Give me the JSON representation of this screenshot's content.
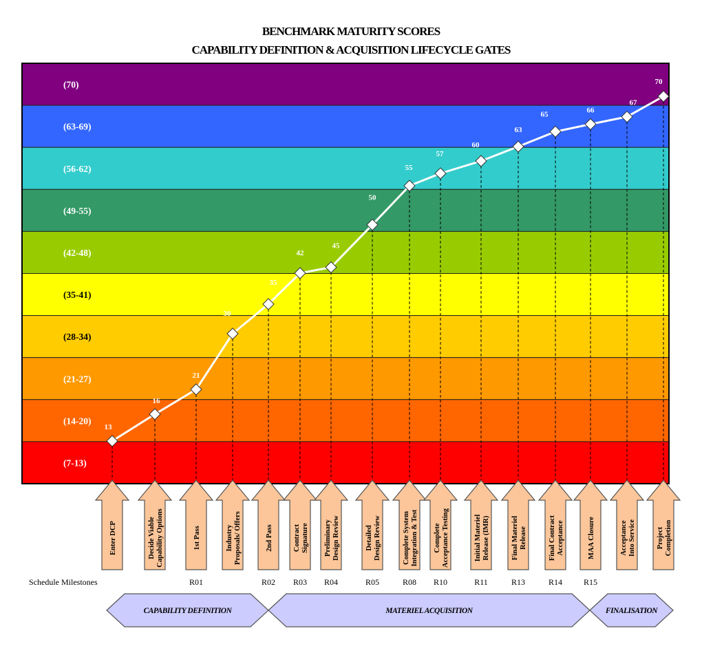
{
  "title_line1": "BENCHMARK MATURITY SCORES",
  "title_line2": "CAPABILITY DEFINITION & ACQUISITION LIFECYCLE GATES",
  "colors": {
    "line": "#ffffff",
    "marker_fill": "#ffffff",
    "marker_stroke": "#333333",
    "arrow_fill": "#fcc69a",
    "arrow_stroke": "#555555",
    "phase_fill": "#ccccff",
    "phase_stroke": "#555555"
  },
  "chart_data": {
    "type": "line",
    "title": "BENCHMARK MATURITY SCORES CAPABILITY DEFINITION & ACQUISITION LIFECYCLE GATES",
    "ylim": [
      7,
      70
    ],
    "bands": [
      {
        "label": "(70)",
        "color": "#800080",
        "label_color": "#ffffff"
      },
      {
        "label": "(63-69)",
        "color": "#3366ff",
        "label_color": "#ffffff"
      },
      {
        "label": "(56-62)",
        "color": "#33cccc",
        "label_color": "#ffffff"
      },
      {
        "label": "(49-55)",
        "color": "#339966",
        "label_color": "#ffffff"
      },
      {
        "label": "(42-48)",
        "color": "#99cc00",
        "label_color": "#ffffff"
      },
      {
        "label": "(35-41)",
        "color": "#ffff00",
        "label_color": "#000000"
      },
      {
        "label": "(28-34)",
        "color": "#ffcc00",
        "label_color": "#000000"
      },
      {
        "label": "(21-27)",
        "color": "#ff9900",
        "label_color": "#ffffff"
      },
      {
        "label": "(14-20)",
        "color": "#ff6600",
        "label_color": "#ffffff"
      },
      {
        "label": "(7-13)",
        "color": "#ff0000",
        "label_color": "#ffffff"
      }
    ],
    "gates": [
      {
        "label": "Enter DCP",
        "value": 13,
        "milestone": ""
      },
      {
        "label": "Decide Viable Capability Options",
        "value": 16,
        "milestone": ""
      },
      {
        "label": "1st Pass",
        "value": 21,
        "milestone": "R01"
      },
      {
        "label": "Industry Proposals/ Offers",
        "value": 30,
        "milestone": ""
      },
      {
        "label": "2nd Pass",
        "value": 35,
        "milestone": "R02"
      },
      {
        "label": "Contract Signature",
        "value": 42,
        "milestone": "R03"
      },
      {
        "label": "Preliminary Design Review",
        "value": 45,
        "milestone": "R04"
      },
      {
        "label": "Detailed Design Review",
        "value": 50,
        "milestone": "R05"
      },
      {
        "label": "Complete System Integration & Test",
        "value": 55,
        "milestone": "R08"
      },
      {
        "label": "Complete Acceptance Testing",
        "value": 57,
        "milestone": "R10"
      },
      {
        "label": "Initial Materiel Release (IMR)",
        "value": 60,
        "milestone": "R11"
      },
      {
        "label": "Final Materiel Release",
        "value": 63,
        "milestone": "R13"
      },
      {
        "label": "Final Contract Acceptance",
        "value": 65,
        "milestone": "R14"
      },
      {
        "label": "MAA Closure",
        "value": 66,
        "milestone": "R15"
      },
      {
        "label": "Acceptance Into Service",
        "value": 67,
        "milestone": ""
      },
      {
        "label": "Project Completion",
        "value": 70,
        "milestone": ""
      }
    ],
    "milestone_caption": "Schedule Milestones",
    "phases": [
      {
        "label": "CAPABILITY DEFINITION"
      },
      {
        "label": "MATERIEL ACQUISITION"
      },
      {
        "label": "FINALISATION"
      }
    ]
  }
}
